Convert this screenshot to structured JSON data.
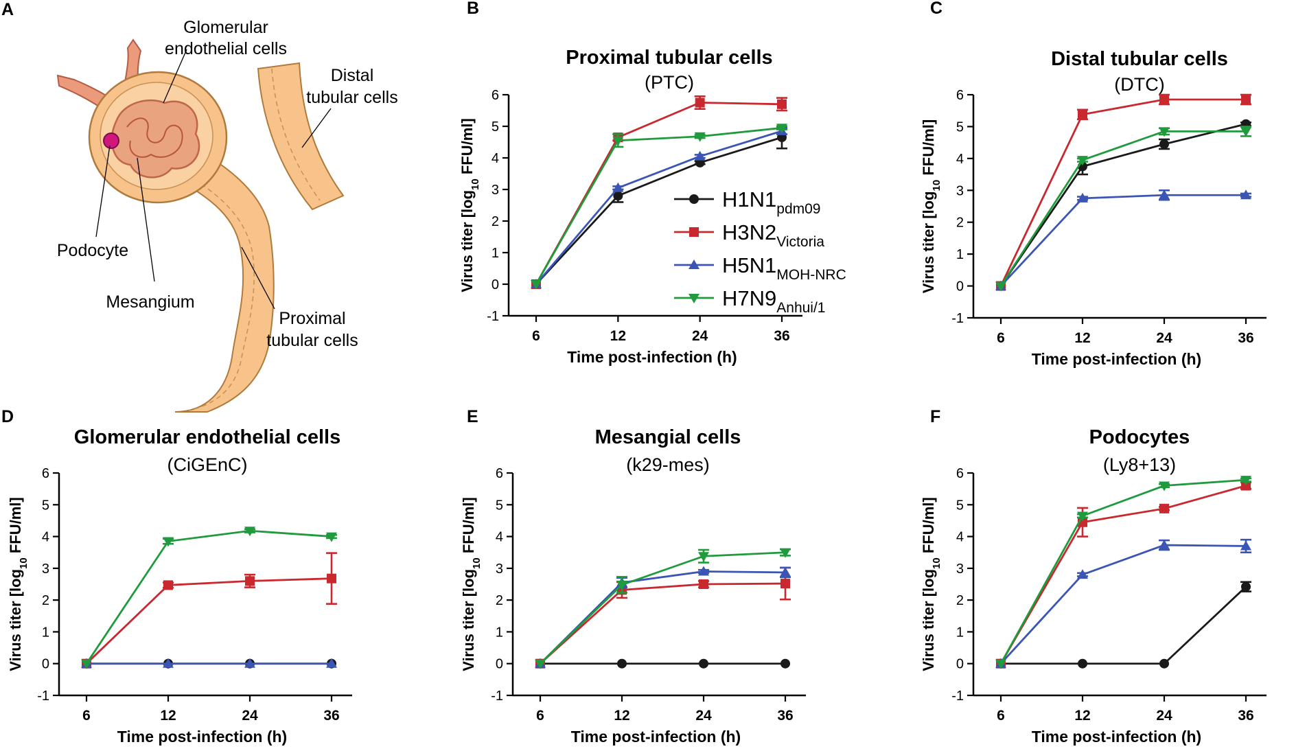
{
  "colors": {
    "H1N1": "#1a1a1a",
    "H3N2": "#c8282e",
    "H5N1": "#3a55b4",
    "H7N9": "#1f9a3c"
  },
  "diagram": {
    "panel": "A",
    "labels": {
      "glomerular": [
        "Glomerular",
        "endothelial cells"
      ],
      "distal": [
        "Distal",
        "tubular cells"
      ],
      "podocyte": "Podocyte",
      "mesangium": "Mesangium",
      "proximal": [
        "Proximal",
        "tubular cells"
      ]
    }
  },
  "legend": {
    "entries": [
      {
        "key": "H1N1",
        "main": "H1N1",
        "sub": "pdm09",
        "marker": "circle"
      },
      {
        "key": "H3N2",
        "main": "H3N2",
        "sub": "Victoria",
        "marker": "square"
      },
      {
        "key": "H5N1",
        "main": "H5N1",
        "sub": "MOH-NRC",
        "marker": "triangle-up"
      },
      {
        "key": "H7N9",
        "main": "H7N9",
        "sub": "Anhui/1",
        "marker": "triangle-down"
      }
    ]
  },
  "chart_data": [
    {
      "panel": "B",
      "type": "line",
      "title": "Proximal tubular cells",
      "subtitle": "(PTC)",
      "xlabel": "Time post-infection (h)",
      "ylabel": "Virus titer [log10 FFU/ml]",
      "ylabel_parts": {
        "pre": "Virus titer [log",
        "sub": "10",
        "post": " FFU/ml]"
      },
      "categories": [
        "6",
        "12",
        "24",
        "36"
      ],
      "ylim": [
        -1,
        6
      ],
      "yticks": [
        "-1",
        "0",
        "1",
        "2",
        "3",
        "4",
        "5",
        "6"
      ],
      "series": [
        {
          "name": "H1N1pdm09",
          "key": "H1N1",
          "values": [
            0,
            2.8,
            3.85,
            4.65
          ],
          "errors": [
            0,
            0.2,
            0.05,
            0.35
          ]
        },
        {
          "name": "H3N2Victoria",
          "key": "H3N2",
          "values": [
            0,
            4.65,
            5.75,
            5.7
          ],
          "errors": [
            0,
            0.1,
            0.2,
            0.2
          ]
        },
        {
          "name": "H5N1MOH-NRC",
          "key": "H5N1",
          "values": [
            0,
            3.05,
            4.05,
            4.85
          ],
          "errors": [
            0,
            0.05,
            0.05,
            0.1
          ]
        },
        {
          "name": "H7N9Anhui/1",
          "key": "H7N9",
          "values": [
            0,
            4.55,
            4.68,
            4.95
          ],
          "errors": [
            0,
            0.2,
            0.05,
            0.05
          ]
        }
      ]
    },
    {
      "panel": "C",
      "type": "line",
      "title": "Distal tubular cells",
      "subtitle": "(DTC)",
      "xlabel": "Time post-infection (h)",
      "ylabel": "Virus titer [log10 FFU/ml]",
      "ylabel_parts": {
        "pre": "Virus titer [log",
        "sub": "10",
        "post": " FFU/ml]"
      },
      "categories": [
        "6",
        "12",
        "24",
        "36"
      ],
      "ylim": [
        -1,
        6
      ],
      "yticks": [
        "-1",
        "0",
        "1",
        "2",
        "3",
        "4",
        "5",
        "6"
      ],
      "series": [
        {
          "name": "H1N1pdm09",
          "key": "H1N1",
          "values": [
            0,
            3.75,
            4.45,
            5.08
          ],
          "errors": [
            0,
            0.25,
            0.15,
            0.05
          ]
        },
        {
          "name": "H3N2Victoria",
          "key": "H3N2",
          "values": [
            0,
            5.38,
            5.85,
            5.85
          ],
          "errors": [
            0,
            0.15,
            0.15,
            0.15
          ]
        },
        {
          "name": "H5N1MOH-NRC",
          "key": "H5N1",
          "values": [
            0,
            2.75,
            2.85,
            2.85
          ],
          "errors": [
            0,
            0.05,
            0.15,
            0.05
          ]
        },
        {
          "name": "H7N9Anhui/1",
          "key": "H7N9",
          "values": [
            0,
            3.95,
            4.85,
            4.85
          ],
          "errors": [
            0,
            0.05,
            0.1,
            0.15
          ]
        }
      ]
    },
    {
      "panel": "D",
      "type": "line",
      "title": "Glomerular endothelial cells",
      "subtitle": "(CiGEnC)",
      "xlabel": "Time post-infection (h)",
      "ylabel": "Virus titer [log10 FFU/ml]",
      "ylabel_parts": {
        "pre": "Virus titer [log",
        "sub": "10",
        "post": " FFU/ml]"
      },
      "categories": [
        "6",
        "12",
        "24",
        "36"
      ],
      "ylim": [
        -1,
        6
      ],
      "yticks": [
        "-1",
        "0",
        "1",
        "2",
        "3",
        "4",
        "5",
        "6"
      ],
      "series": [
        {
          "name": "H1N1pdm09",
          "key": "H1N1",
          "values": [
            0,
            0,
            0,
            0
          ],
          "errors": [
            0,
            0,
            0,
            0
          ]
        },
        {
          "name": "H3N2Victoria",
          "key": "H3N2",
          "values": [
            0,
            2.47,
            2.6,
            2.68
          ],
          "errors": [
            0,
            0.08,
            0.2,
            0.8
          ]
        },
        {
          "name": "H5N1MOH-NRC",
          "key": "H5N1",
          "values": [
            0,
            0,
            0,
            0
          ],
          "errors": [
            0,
            0,
            0,
            0
          ]
        },
        {
          "name": "H7N9Anhui/1",
          "key": "H7N9",
          "values": [
            0,
            3.85,
            4.18,
            4.0
          ],
          "errors": [
            0,
            0.08,
            0.05,
            0.05
          ]
        }
      ]
    },
    {
      "panel": "E",
      "type": "line",
      "title": "Mesangial cells",
      "subtitle": "(k29-mes)",
      "xlabel": "Time post-infection (h)",
      "ylabel": "Virus titer [log10 FFU/ml]",
      "ylabel_parts": {
        "pre": "Virus titer [log",
        "sub": "10",
        "post": " FFU/ml]"
      },
      "categories": [
        "6",
        "12",
        "24",
        "36"
      ],
      "ylim": [
        -1,
        6
      ],
      "yticks": [
        "-1",
        "0",
        "1",
        "2",
        "3",
        "4",
        "5",
        "6"
      ],
      "series": [
        {
          "name": "H1N1pdm09",
          "key": "H1N1",
          "values": [
            0,
            0,
            0,
            0
          ],
          "errors": [
            0,
            0,
            0,
            0
          ]
        },
        {
          "name": "H3N2Victoria",
          "key": "H3N2",
          "values": [
            0,
            2.32,
            2.5,
            2.52
          ],
          "errors": [
            0,
            0.25,
            0.1,
            0.5
          ]
        },
        {
          "name": "H5N1MOH-NRC",
          "key": "H5N1",
          "values": [
            0,
            2.55,
            2.9,
            2.87
          ],
          "errors": [
            0,
            0.15,
            0.05,
            0.15
          ]
        },
        {
          "name": "H7N9Anhui/1",
          "key": "H7N9",
          "values": [
            0,
            2.48,
            3.38,
            3.5
          ],
          "errors": [
            0,
            0.25,
            0.2,
            0.1
          ]
        }
      ]
    },
    {
      "panel": "F",
      "type": "line",
      "title": "Podocytes",
      "subtitle": "(Ly8+13)",
      "xlabel": "Time post-infection (h)",
      "ylabel": "Virus titer [log10 FFU/ml]",
      "ylabel_parts": {
        "pre": "Virus titer [log",
        "sub": "10",
        "post": " FFU/ml]"
      },
      "categories": [
        "6",
        "12",
        "24",
        "36"
      ],
      "ylim": [
        -1,
        6
      ],
      "yticks": [
        "-1",
        "0",
        "1",
        "2",
        "3",
        "4",
        "5",
        "6"
      ],
      "series": [
        {
          "name": "H1N1pdm09",
          "key": "H1N1",
          "values": [
            0,
            0,
            0,
            2.42
          ],
          "errors": [
            0,
            0,
            0,
            0.15
          ]
        },
        {
          "name": "H3N2Victoria",
          "key": "H3N2",
          "values": [
            0,
            4.45,
            4.88,
            5.6
          ],
          "errors": [
            0,
            0.45,
            0.05,
            0.1
          ]
        },
        {
          "name": "H5N1MOH-NRC",
          "key": "H5N1",
          "values": [
            0,
            2.8,
            3.73,
            3.7
          ],
          "errors": [
            0,
            0.05,
            0.15,
            0.2
          ]
        },
        {
          "name": "H7N9Anhui/1",
          "key": "H7N9",
          "values": [
            0,
            4.65,
            5.6,
            5.78
          ],
          "errors": [
            0,
            0.05,
            0.05,
            0.05
          ]
        }
      ]
    }
  ]
}
